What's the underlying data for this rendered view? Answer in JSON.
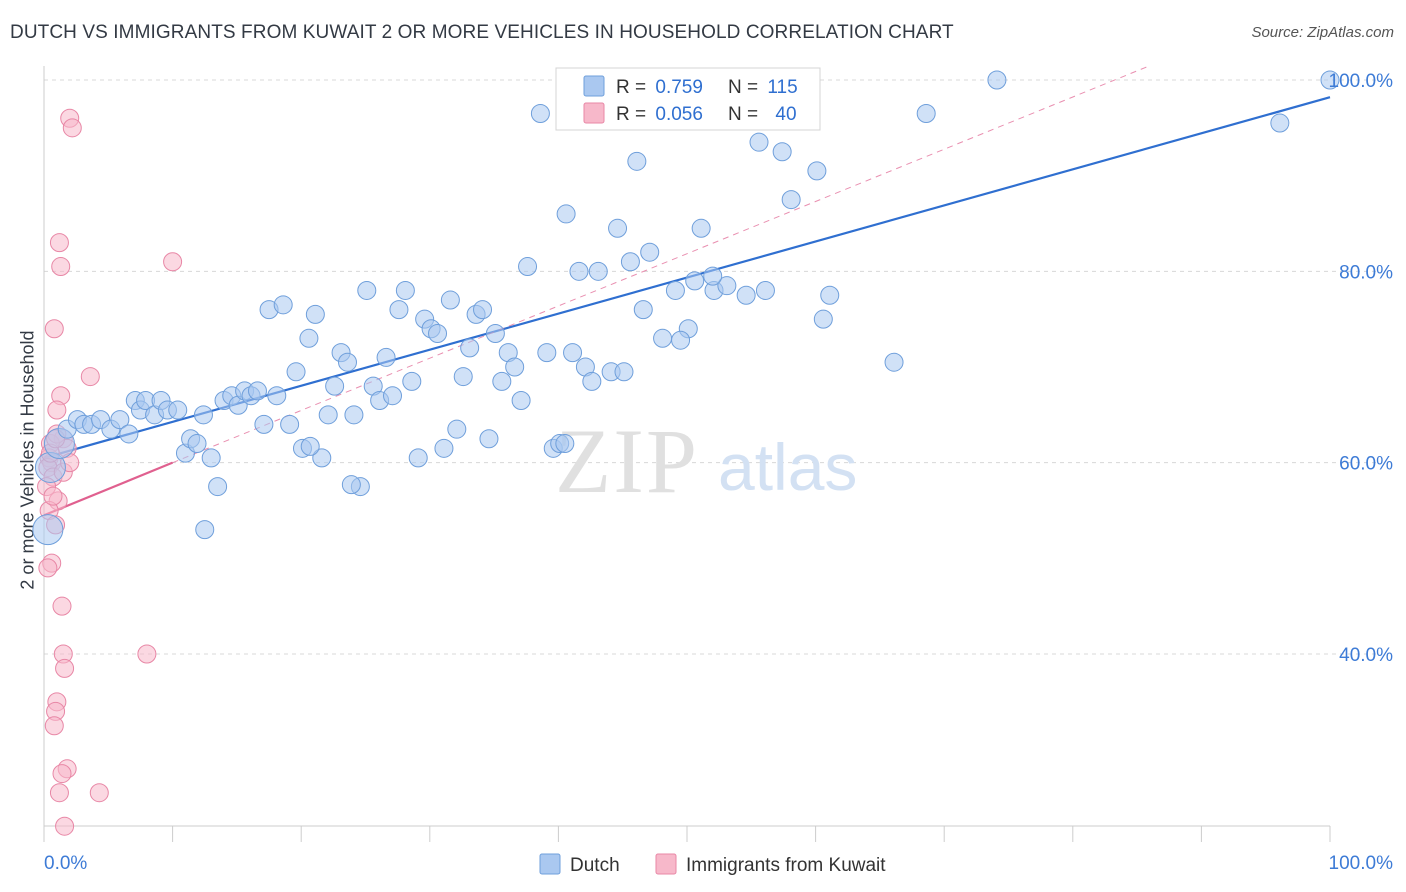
{
  "title": "DUTCH VS IMMIGRANTS FROM KUWAIT 2 OR MORE VEHICLES IN HOUSEHOLD CORRELATION CHART",
  "source": "Source: ZipAtlas.com",
  "watermark": {
    "zip": "ZIP",
    "atlas": "atlas"
  },
  "colors": {
    "dutch_fill": "#aac8f0",
    "dutch_stroke": "#6f9fdb",
    "dutch_line": "#2f6fd0",
    "kuwait_fill": "#f7b8ca",
    "kuwait_stroke": "#e887a6",
    "kuwait_line": "#e0608f",
    "axis_text": "#3d7bd6",
    "grid": "#d8d8d8"
  },
  "legend_top": {
    "rows": [
      {
        "r_label": "R = ",
        "r_value": "0.759",
        "n_label": "N = ",
        "n_value": "115"
      },
      {
        "r_label": "R = ",
        "r_value": "0.056",
        "n_label": "N = ",
        "n_value": "40"
      }
    ]
  },
  "legend_bottom": {
    "items": [
      "Dutch",
      "Immigrants from Kuwait"
    ]
  },
  "chart_data": {
    "type": "scatter",
    "title": "DUTCH VS IMMIGRANTS FROM KUWAIT 2 OR MORE VEHICLES IN HOUSEHOLD CORRELATION CHART",
    "xlabel": "",
    "ylabel": "2 or more Vehicles in Household",
    "xlim": [
      0,
      100
    ],
    "ylim": [
      19,
      101
    ],
    "x_tick_labels": [
      "0.0%",
      "100.0%"
    ],
    "y_ticks": [
      40,
      60,
      80,
      100
    ],
    "y_tick_labels": [
      "40.0%",
      "60.0%",
      "80.0%",
      "100.0%"
    ],
    "grid": true,
    "legend_position": "top-center",
    "series": [
      {
        "name": "Dutch",
        "points": [
          [
            0.3,
            53.0
          ],
          [
            0.5,
            59.5
          ],
          [
            1.2,
            62.0
          ],
          [
            1.8,
            63.5
          ],
          [
            2.6,
            64.5
          ],
          [
            3.1,
            64.0
          ],
          [
            3.7,
            64.0
          ],
          [
            4.4,
            64.5
          ],
          [
            5.2,
            63.5
          ],
          [
            5.9,
            64.5
          ],
          [
            6.6,
            63.0
          ],
          [
            7.1,
            66.5
          ],
          [
            7.5,
            65.5
          ],
          [
            7.9,
            66.5
          ],
          [
            8.6,
            65.0
          ],
          [
            9.1,
            66.5
          ],
          [
            9.6,
            65.5
          ],
          [
            10.4,
            65.5
          ],
          [
            11.0,
            61.0
          ],
          [
            11.4,
            62.5
          ],
          [
            11.9,
            62.0
          ],
          [
            12.4,
            65.0
          ],
          [
            12.5,
            53.0
          ],
          [
            13.0,
            60.5
          ],
          [
            13.5,
            57.5
          ],
          [
            14.0,
            66.5
          ],
          [
            14.6,
            67.0
          ],
          [
            15.1,
            66.0
          ],
          [
            15.6,
            67.5
          ],
          [
            16.1,
            67.0
          ],
          [
            16.6,
            67.5
          ],
          [
            17.1,
            64.0
          ],
          [
            17.5,
            76.0
          ],
          [
            18.1,
            67.0
          ],
          [
            18.6,
            76.5
          ],
          [
            19.1,
            64.0
          ],
          [
            19.6,
            69.5
          ],
          [
            20.1,
            61.5
          ],
          [
            20.6,
            73.0
          ],
          [
            21.1,
            75.5
          ],
          [
            21.6,
            60.5
          ],
          [
            22.1,
            65.0
          ],
          [
            22.6,
            68.0
          ],
          [
            23.1,
            71.5
          ],
          [
            23.6,
            70.5
          ],
          [
            24.1,
            65.0
          ],
          [
            24.6,
            57.5
          ],
          [
            25.1,
            78.0
          ],
          [
            25.6,
            68.0
          ],
          [
            26.1,
            66.5
          ],
          [
            26.6,
            71.0
          ],
          [
            27.1,
            67.0
          ],
          [
            27.6,
            76.0
          ],
          [
            28.1,
            78.0
          ],
          [
            28.6,
            68.5
          ],
          [
            29.1,
            60.5
          ],
          [
            29.6,
            75.0
          ],
          [
            30.1,
            74.0
          ],
          [
            30.6,
            73.5
          ],
          [
            31.1,
            61.5
          ],
          [
            31.6,
            77.0
          ],
          [
            32.1,
            63.5
          ],
          [
            32.6,
            69.0
          ],
          [
            33.1,
            72.0
          ],
          [
            33.6,
            75.5
          ],
          [
            34.1,
            76.0
          ],
          [
            34.6,
            62.5
          ],
          [
            35.1,
            73.5
          ],
          [
            35.6,
            68.5
          ],
          [
            36.1,
            71.5
          ],
          [
            36.6,
            70.0
          ],
          [
            37.1,
            66.5
          ],
          [
            37.6,
            80.5
          ],
          [
            38.6,
            96.5
          ],
          [
            39.1,
            71.5
          ],
          [
            39.6,
            61.5
          ],
          [
            40.1,
            62.0
          ],
          [
            40.6,
            86.0
          ],
          [
            41.1,
            71.5
          ],
          [
            41.6,
            80.0
          ],
          [
            42.1,
            70.0
          ],
          [
            42.6,
            68.5
          ],
          [
            43.1,
            80.0
          ],
          [
            44.1,
            69.5
          ],
          [
            44.6,
            84.5
          ],
          [
            45.1,
            69.5
          ],
          [
            45.6,
            81.0
          ],
          [
            46.1,
            91.5
          ],
          [
            46.6,
            76.0
          ],
          [
            47.1,
            82.0
          ],
          [
            48.1,
            73.0
          ],
          [
            49.1,
            78.0
          ],
          [
            50.1,
            74.0
          ],
          [
            50.6,
            79.0
          ],
          [
            51.1,
            84.5
          ],
          [
            52.1,
            78.0
          ],
          [
            53.1,
            78.5
          ],
          [
            54.6,
            77.5
          ],
          [
            55.6,
            93.5
          ],
          [
            56.1,
            78.0
          ],
          [
            58.1,
            87.5
          ],
          [
            60.1,
            90.5
          ],
          [
            60.6,
            75.0
          ],
          [
            61.1,
            77.5
          ],
          [
            66.1,
            70.5
          ],
          [
            68.6,
            96.5
          ],
          [
            74.1,
            100.0
          ],
          [
            96.1,
            95.5
          ],
          [
            100.0,
            100.0
          ],
          [
            40.5,
            62.0
          ],
          [
            23.9,
            57.7
          ],
          [
            49.5,
            72.8
          ],
          [
            52.0,
            79.5
          ],
          [
            20.7,
            61.7
          ],
          [
            57.4,
            92.5
          ]
        ]
      },
      {
        "name": "Immigrants from Kuwait",
        "points": [
          [
            2.0,
            96.0
          ],
          [
            2.2,
            95.0
          ],
          [
            1.2,
            83.0
          ],
          [
            1.3,
            80.5
          ],
          [
            10.0,
            81.0
          ],
          [
            0.8,
            74.0
          ],
          [
            3.6,
            69.0
          ],
          [
            1.3,
            67.0
          ],
          [
            1.0,
            65.5
          ],
          [
            1.5,
            62.5
          ],
          [
            0.5,
            62.0
          ],
          [
            1.8,
            61.5
          ],
          [
            0.4,
            60.5
          ],
          [
            0.6,
            60.0
          ],
          [
            0.3,
            59.5
          ],
          [
            0.7,
            58.5
          ],
          [
            0.2,
            57.5
          ],
          [
            1.1,
            56.0
          ],
          [
            0.4,
            55.0
          ],
          [
            0.9,
            53.5
          ],
          [
            0.6,
            49.5
          ],
          [
            0.3,
            49.0
          ],
          [
            1.4,
            45.0
          ],
          [
            1.5,
            40.0
          ],
          [
            1.6,
            38.5
          ],
          [
            8.0,
            40.0
          ],
          [
            1.0,
            35.0
          ],
          [
            0.9,
            34.0
          ],
          [
            0.8,
            32.5
          ],
          [
            1.8,
            28.0
          ],
          [
            1.4,
            27.5
          ],
          [
            1.2,
            25.5
          ],
          [
            4.3,
            25.5
          ],
          [
            1.6,
            22.0
          ],
          [
            0.5,
            61.0
          ],
          [
            1.0,
            63.0
          ],
          [
            1.5,
            59.0
          ],
          [
            0.7,
            56.5
          ],
          [
            2.0,
            60.0
          ],
          [
            0.9,
            62.5
          ]
        ]
      }
    ],
    "trend_lines": [
      {
        "series": "Dutch",
        "x": [
          0,
          100
        ],
        "y": [
          60.5,
          98.2
        ]
      },
      {
        "series": "Immigrants from Kuwait",
        "x": [
          0,
          10
        ],
        "y": [
          54.5,
          60.0
        ],
        "dashed_extension_to": [
          86,
          101.5
        ]
      }
    ]
  }
}
